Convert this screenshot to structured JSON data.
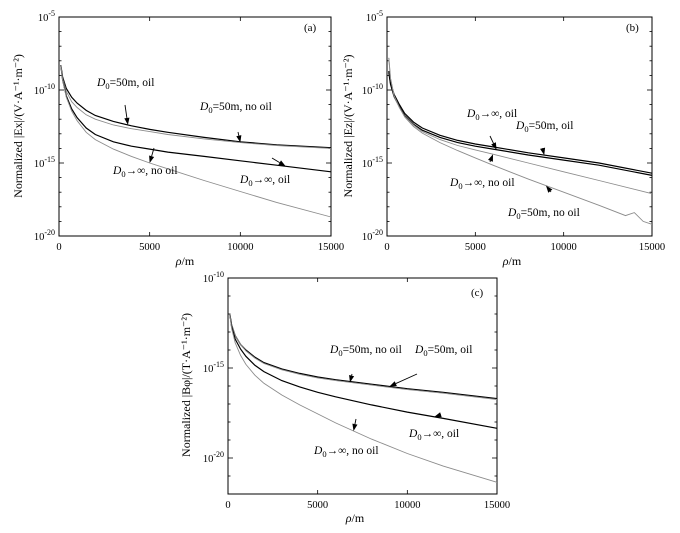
{
  "chart_data": [
    {
      "panel": "(a)",
      "type": "line",
      "x_label": "ρ/m",
      "y_label": "Normalized |Ex|/(V·A⁻¹·m⁻²)",
      "xlim": [
        0,
        15000
      ],
      "x_ticks": [
        "0",
        "5000",
        "10000",
        "15000"
      ],
      "y_scale": "log",
      "ylim_exp": [
        -20,
        -5
      ],
      "y_ticks_exp": [
        -20,
        -15,
        -10,
        -5
      ],
      "series": [
        {
          "name": "D0=50m, oil",
          "color": "#000000",
          "x": [
            100,
            200,
            400,
            700,
            1000,
            1500,
            2000,
            3000,
            4000,
            5000,
            6000,
            8000,
            10000,
            12000,
            15000
          ],
          "log10_y": [
            -8.3,
            -9.1,
            -9.9,
            -10.5,
            -10.9,
            -11.4,
            -11.75,
            -12.15,
            -12.45,
            -12.7,
            -12.9,
            -13.25,
            -13.55,
            -13.75,
            -13.95
          ]
        },
        {
          "name": "D0=50m, no oil",
          "color": "#8c8c8c",
          "x": [
            100,
            200,
            400,
            700,
            1000,
            1500,
            2000,
            3000,
            4000,
            5000,
            6000,
            8000,
            10000,
            12000,
            15000
          ],
          "log10_y": [
            -8.3,
            -9.2,
            -10.1,
            -10.8,
            -11.2,
            -11.7,
            -12.0,
            -12.4,
            -12.65,
            -12.85,
            -13.05,
            -13.35,
            -13.6,
            -13.8,
            -14.0
          ]
        },
        {
          "name": "D0→∞, oil",
          "color": "#000000",
          "x": [
            100,
            200,
            400,
            700,
            1000,
            1500,
            2000,
            3000,
            4000,
            5000,
            6000,
            8000,
            10000,
            12000,
            15000
          ],
          "log10_y": [
            -8.3,
            -9.3,
            -10.4,
            -11.3,
            -11.9,
            -12.6,
            -13.05,
            -13.55,
            -13.85,
            -14.05,
            -14.25,
            -14.55,
            -14.85,
            -15.15,
            -15.6
          ]
        },
        {
          "name": "D0→∞, no oil",
          "color": "#8c8c8c",
          "x": [
            100,
            200,
            400,
            700,
            1000,
            1500,
            2000,
            3000,
            4000,
            5000,
            6000,
            8000,
            10000,
            12000,
            15000
          ],
          "log10_y": [
            -8.3,
            -9.3,
            -10.5,
            -11.45,
            -12.1,
            -12.9,
            -13.4,
            -14.05,
            -14.55,
            -15.0,
            -15.4,
            -16.2,
            -16.95,
            -17.7,
            -18.7
          ]
        }
      ]
    },
    {
      "panel": "(b)",
      "type": "line",
      "x_label": "ρ/m",
      "y_label": "Normalized |Ez|/(V·A⁻¹·m⁻²)",
      "xlim": [
        0,
        15000
      ],
      "x_ticks": [
        "0",
        "5000",
        "10000",
        "15000"
      ],
      "y_scale": "log",
      "ylim_exp": [
        -20,
        -5
      ],
      "y_ticks_exp": [
        -20,
        -15,
        -10,
        -5
      ],
      "series": [
        {
          "name": "D0=50m, oil",
          "color": "#000000",
          "x": [
            100,
            200,
            400,
            700,
            1000,
            1500,
            2000,
            3000,
            4000,
            5000,
            6000,
            8000,
            10000,
            12000,
            15000
          ],
          "log10_y": [
            -8.7,
            -9.5,
            -10.3,
            -11.0,
            -11.6,
            -12.2,
            -12.6,
            -13.1,
            -13.45,
            -13.7,
            -13.9,
            -14.3,
            -14.65,
            -15.0,
            -15.7
          ]
        },
        {
          "name": "D0→∞, oil",
          "color": "#000000",
          "x": [
            100,
            200,
            400,
            700,
            1000,
            1500,
            2000,
            3000,
            4000,
            5000,
            6000,
            8000,
            10000,
            12000,
            15000
          ],
          "log10_y": [
            -8.8,
            -9.6,
            -10.45,
            -11.15,
            -11.75,
            -12.35,
            -12.75,
            -13.25,
            -13.6,
            -13.85,
            -14.05,
            -14.45,
            -14.8,
            -15.15,
            -15.85
          ]
        },
        {
          "name": "D0→∞, no oil",
          "color": "#8c8c8c",
          "x": [
            100,
            200,
            400,
            700,
            1000,
            1500,
            2000,
            3000,
            4000,
            5000,
            6000,
            8000,
            10000,
            12000,
            15000
          ],
          "log10_y": [
            -7.8,
            -9.2,
            -10.4,
            -11.2,
            -11.8,
            -12.4,
            -12.85,
            -13.4,
            -13.8,
            -14.1,
            -14.4,
            -15.0,
            -15.6,
            -16.2,
            -17.1
          ]
        },
        {
          "name": "D0=50m, no oil",
          "color": "#8c8c8c",
          "x": [
            100,
            200,
            400,
            700,
            1000,
            1500,
            2000,
            3000,
            4000,
            5000,
            6000,
            8000,
            10000,
            12000,
            13500,
            14000,
            14500,
            15000
          ],
          "log10_y": [
            -7.8,
            -9.2,
            -10.4,
            -11.2,
            -11.85,
            -12.5,
            -12.95,
            -13.6,
            -14.15,
            -14.65,
            -15.15,
            -16.1,
            -17.0,
            -17.9,
            -18.6,
            -18.4,
            -19.0,
            -19.2
          ]
        }
      ]
    },
    {
      "panel": "(c)",
      "type": "line",
      "x_label": "ρ/m",
      "y_label": "Normalized |Bφ|/(T·A⁻¹·m⁻²)",
      "xlim": [
        0,
        15000
      ],
      "x_ticks": [
        "0",
        "5000",
        "10000",
        "15000"
      ],
      "y_scale": "log",
      "ylim_exp": [
        -22,
        -10
      ],
      "y_ticks_exp": [
        -20,
        -15,
        -10
      ],
      "series": [
        {
          "name": "D0=50m, oil",
          "color": "#000000",
          "x": [
            100,
            200,
            400,
            700,
            1000,
            1500,
            2000,
            3000,
            4000,
            5000,
            6000,
            8000,
            10000,
            12000,
            15000
          ],
          "log10_y": [
            -12.0,
            -12.6,
            -13.2,
            -13.7,
            -14.0,
            -14.4,
            -14.7,
            -15.05,
            -15.3,
            -15.5,
            -15.65,
            -15.9,
            -16.15,
            -16.35,
            -16.7
          ]
        },
        {
          "name": "D0=50m, no oil",
          "color": "#8c8c8c",
          "x": [
            100,
            200,
            400,
            700,
            1000,
            1500,
            2000,
            3000,
            4000,
            5000,
            6000,
            8000,
            10000,
            12000,
            15000
          ],
          "log10_y": [
            -12.0,
            -12.6,
            -13.2,
            -13.7,
            -14.05,
            -14.45,
            -14.75,
            -15.1,
            -15.35,
            -15.55,
            -15.7,
            -15.95,
            -16.2,
            -16.4,
            -16.75
          ]
        },
        {
          "name": "D0→∞, oil",
          "color": "#000000",
          "x": [
            100,
            200,
            400,
            700,
            1000,
            1500,
            2000,
            3000,
            4000,
            5000,
            6000,
            8000,
            10000,
            12000,
            15000
          ],
          "log10_y": [
            -12.0,
            -12.7,
            -13.4,
            -13.95,
            -14.35,
            -14.85,
            -15.2,
            -15.7,
            -16.05,
            -16.35,
            -16.6,
            -17.05,
            -17.45,
            -17.8,
            -18.35
          ]
        },
        {
          "name": "D0→∞, no oil",
          "color": "#8c8c8c",
          "x": [
            100,
            200,
            400,
            700,
            1000,
            1500,
            2000,
            3000,
            4000,
            5000,
            6000,
            8000,
            10000,
            12000,
            15000
          ],
          "log10_y": [
            -12.0,
            -12.8,
            -13.6,
            -14.3,
            -14.8,
            -15.4,
            -15.85,
            -16.5,
            -17.05,
            -17.55,
            -18.05,
            -18.95,
            -19.75,
            -20.45,
            -21.35
          ]
        }
      ]
    }
  ],
  "annotations": [
    [
      {
        "sub": "0",
        "text": "=50m, oil",
        "series": 0,
        "at_x": 3800
      },
      {
        "sub": "0",
        "text": "=50m, no oil",
        "series": 1,
        "at_x": 10000
      },
      {
        "sub": "0",
        "text": "→∞, no oil",
        "series": 3,
        "at_x": 5000
      },
      {
        "sub": "0",
        "text": "→∞, oil",
        "series": 2,
        "at_x": 12500
      }
    ],
    [
      {
        "sub": "0",
        "text": "→∞, oil",
        "series": 1,
        "at_x": 6200
      },
      {
        "sub": "0",
        "text": "=50m, oil",
        "series": 0,
        "at_x": 8900
      },
      {
        "sub": "0",
        "text": "→∞, no oil",
        "series": 2,
        "at_x": 6000
      },
      {
        "sub": "0",
        "text": "=50m, no oil",
        "series": 3,
        "at_x": 9000
      }
    ],
    [
      {
        "sub": "0",
        "text": "=50m, no oil",
        "series": 1,
        "at_x": 6800
      },
      {
        "sub": "0",
        "text": "=50m, oil",
        "series": 0,
        "at_x": 9000
      },
      {
        "sub": "0",
        "text": "→∞, oil",
        "series": 2,
        "at_x": 11500
      },
      {
        "sub": "0",
        "text": "→∞, no oil",
        "series": 3,
        "at_x": 7000
      }
    ]
  ]
}
